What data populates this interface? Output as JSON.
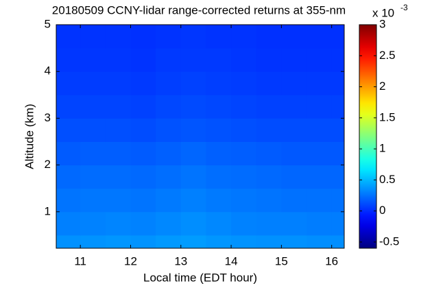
{
  "chart_data": {
    "type": "heatmap",
    "title": "20180509 CCNY-lidar range-corrected returns at 355-nm",
    "xlabel": "Local time (EDT hour)",
    "ylabel": "Altitude (km)",
    "x": [
      10.75,
      11.25,
      11.75,
      12.25,
      12.75,
      13.25,
      13.75,
      14.25,
      14.75,
      15.25,
      15.75,
      16.25
    ],
    "y": [
      0.25,
      0.75,
      1.25,
      1.75,
      2.25,
      2.75,
      3.25,
      3.75,
      4.25,
      4.75
    ],
    "z": [
      [
        0.36,
        0.37,
        0.38,
        0.37,
        0.39,
        0.4,
        0.38,
        0.37,
        0.36,
        0.36,
        0.35,
        0.35
      ],
      [
        0.3,
        0.31,
        0.32,
        0.31,
        0.33,
        0.35,
        0.33,
        0.31,
        0.3,
        0.3,
        0.29,
        0.29
      ],
      [
        0.26,
        0.27,
        0.27,
        0.26,
        0.28,
        0.3,
        0.28,
        0.27,
        0.26,
        0.25,
        0.25,
        0.25
      ],
      [
        0.22,
        0.23,
        0.23,
        0.22,
        0.24,
        0.26,
        0.24,
        0.23,
        0.22,
        0.21,
        0.21,
        0.21
      ],
      [
        0.17,
        0.18,
        0.18,
        0.17,
        0.19,
        0.21,
        0.19,
        0.18,
        0.17,
        0.16,
        0.16,
        0.16
      ],
      [
        0.13,
        0.13,
        0.13,
        0.12,
        0.14,
        0.15,
        0.14,
        0.13,
        0.12,
        0.12,
        0.12,
        0.12
      ],
      [
        0.09,
        0.09,
        0.09,
        0.08,
        0.1,
        0.11,
        0.1,
        0.09,
        0.08,
        0.08,
        0.08,
        0.08
      ],
      [
        0.06,
        0.06,
        0.06,
        0.05,
        0.07,
        0.08,
        0.07,
        0.06,
        0.05,
        0.05,
        0.05,
        0.05
      ],
      [
        0.04,
        0.04,
        0.04,
        0.03,
        0.05,
        0.05,
        0.05,
        0.04,
        0.03,
        0.03,
        0.03,
        0.03
      ],
      [
        0.03,
        0.03,
        0.03,
        0.02,
        0.03,
        0.04,
        0.03,
        0.03,
        0.02,
        0.02,
        0.02,
        0.02
      ]
    ],
    "xlim": [
      10.52,
      16.25
    ],
    "xticks": [
      11,
      12,
      13,
      14,
      15,
      16
    ],
    "ylim": [
      0.22,
      5
    ],
    "yticks": [
      1,
      2,
      3,
      4,
      5
    ],
    "colormap": "jet",
    "clim": [
      -0.6,
      3
    ],
    "cticks": [
      -0.5,
      0,
      0.5,
      1,
      1.5,
      2,
      2.5,
      3
    ],
    "colorbar_multiplier": "x 10",
    "colorbar_exponent": "-3"
  }
}
